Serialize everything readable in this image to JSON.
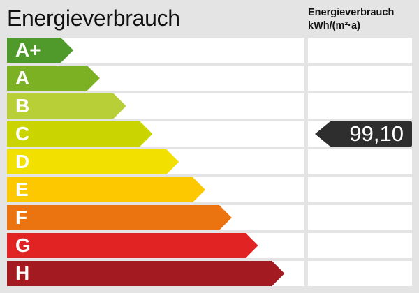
{
  "title": "Energieverbrauch",
  "column_header": {
    "line1": "Energieverbrauch",
    "line2": "kWh/(m²·a)"
  },
  "classes": [
    {
      "label": "A+",
      "color": "#4f9a2a"
    },
    {
      "label": "A",
      "color": "#7db124"
    },
    {
      "label": "B",
      "color": "#b8cf37"
    },
    {
      "label": "C",
      "color": "#cad400"
    },
    {
      "label": "D",
      "color": "#f2e000"
    },
    {
      "label": "E",
      "color": "#fdc800"
    },
    {
      "label": "F",
      "color": "#ec7410"
    },
    {
      "label": "G",
      "color": "#e22323"
    },
    {
      "label": "H",
      "color": "#a31b21"
    }
  ],
  "value": {
    "text": "99,10",
    "class": "C",
    "color": "#2e2e2e"
  }
}
